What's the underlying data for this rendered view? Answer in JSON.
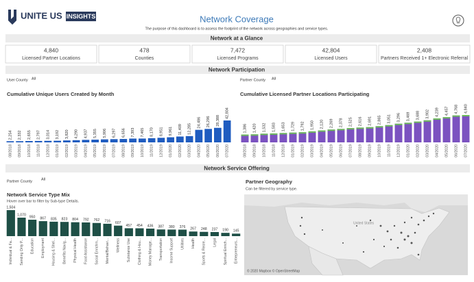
{
  "header": {
    "brand": "UNITE US",
    "badge": "INSIGHTS",
    "title": "Network Coverage",
    "subtitle": "The purpose of this dashboard is to assess the footprint of the network across geographies and service types."
  },
  "glance": {
    "title": "Network at a Glance",
    "kpis": [
      {
        "value": "4,840",
        "label": "Licensed Partner Locations"
      },
      {
        "value": "478",
        "label": "Counties"
      },
      {
        "value": "7,472",
        "label": "Licensed Programs"
      },
      {
        "value": "42,804",
        "label": "Licensed Users"
      },
      {
        "value": "2,408",
        "label": "Partners Received 1+ Electronic Referral"
      }
    ]
  },
  "participation": {
    "title": "Network Participation",
    "filters": [
      {
        "label": "User County",
        "value": "All"
      },
      {
        "label": "Partner County",
        "value": "All"
      }
    ]
  },
  "service": {
    "title": "Network Service Offering",
    "filter": {
      "label": "Partner County",
      "value": "All"
    }
  },
  "map": {
    "title": "Partner Geography",
    "subtitle": "Can be filtered by service type.",
    "country": "United States",
    "credit": "© 2020 Mapbox © OpenStreetMap"
  },
  "chart_data": [
    {
      "type": "bar",
      "title": "Cumulative Unique Users Created by Month",
      "categories": [
        "08/2018",
        "09/2018",
        "10/2018",
        "11/2018",
        "12/2018",
        "01/2019",
        "02/2019",
        "03/2019",
        "04/2019",
        "05/2019",
        "06/2019",
        "07/2019",
        "08/2019",
        "09/2019",
        "10/2019",
        "11/2019",
        "12/2019",
        "01/2020",
        "02/2020",
        "03/2020",
        "04/2020",
        "05/2020",
        "06/2020",
        "07/2020"
      ],
      "values": [
        2254,
        2332,
        2655,
        2797,
        3014,
        3192,
        3820,
        4290,
        4937,
        5355,
        5906,
        6297,
        6656,
        7393,
        7465,
        8170,
        8951,
        9961,
        11409,
        12285,
        24486,
        26296,
        28388,
        42804
      ],
      "value_labels": [
        "2,254",
        "2,332",
        "2,655",
        "2,797",
        "3,014",
        "3,192",
        "3,820",
        "4,290",
        "4,937",
        "5,355",
        "5,906",
        "6,297",
        "6,656",
        "7,393",
        "7,465",
        "8,170",
        "8,951",
        "9,961",
        "11,409",
        "12,285",
        "24,486",
        "26,296",
        "28,388",
        "42,804"
      ],
      "color": "#1f5cc0"
    },
    {
      "type": "bar",
      "title": "Cumulative Licensed Partner Locations Participating",
      "categories": [
        "08/2018",
        "09/2018",
        "10/2018",
        "11/2018",
        "12/2018",
        "01/2019",
        "02/2019",
        "03/2019",
        "04/2019",
        "05/2019",
        "06/2019",
        "07/2019",
        "08/2019",
        "09/2019",
        "10/2019",
        "11/2019",
        "12/2019",
        "01/2020",
        "02/2020",
        "03/2020",
        "04/2020",
        "05/2020",
        "06/2020",
        "07/2020"
      ],
      "values": [
        1386,
        1420,
        1532,
        1583,
        1653,
        1729,
        1792,
        1950,
        2120,
        2269,
        2378,
        2525,
        2616,
        2691,
        2865,
        3051,
        3296,
        3469,
        3688,
        3902,
        4239,
        4457,
        4768,
        4840
      ],
      "value_labels": [
        "1,386",
        "1,420",
        "1,532",
        "1,583",
        "1,653",
        "1,729",
        "1,792",
        "1,950",
        "2,120",
        "2,269",
        "2,378",
        "2,525",
        "2,616",
        "2,691",
        "2,865",
        "3,051",
        "3,296",
        "3,469",
        "3,688",
        "3,902",
        "4,239",
        "4,457",
        "4,768",
        "4,840"
      ],
      "color": "#7b52c0",
      "highlight_color": "#6dbb5a"
    },
    {
      "type": "bar",
      "title": "Network Service Type Mix",
      "subtitle": "Hover over bar to filter by Sub-type Details.",
      "categories": [
        "Individual & Fa...",
        "Sending Only P...",
        "Education",
        "Employment",
        "Housing & Shel...",
        "Benefits Navig...",
        "Physical Health",
        "Food Assistance",
        "Social Enrichm...",
        "Mental/Behavi...",
        "Wellness",
        "Substance Use",
        "Clothing & Hou...",
        "Money Manage...",
        "Transportation",
        "Income Support",
        "Utilities",
        "Health",
        "Sports & Recre...",
        "Legal",
        "Spiritual Enrich...",
        "Entrepreneurs..."
      ],
      "values": [
        1504,
        1070,
        950,
        867,
        835,
        823,
        804,
        792,
        762,
        716,
        607,
        457,
        454,
        436,
        387,
        380,
        376,
        267,
        248,
        237,
        190,
        145
      ],
      "value_labels": [
        "1,504",
        "1,070",
        "950",
        "867",
        "835",
        "823",
        "804",
        "792",
        "762",
        "716",
        "607",
        "457",
        "454",
        "436",
        "387",
        "380",
        "376",
        "267",
        "248",
        "237",
        "190",
        "145"
      ],
      "color": "#1e4f46"
    }
  ]
}
